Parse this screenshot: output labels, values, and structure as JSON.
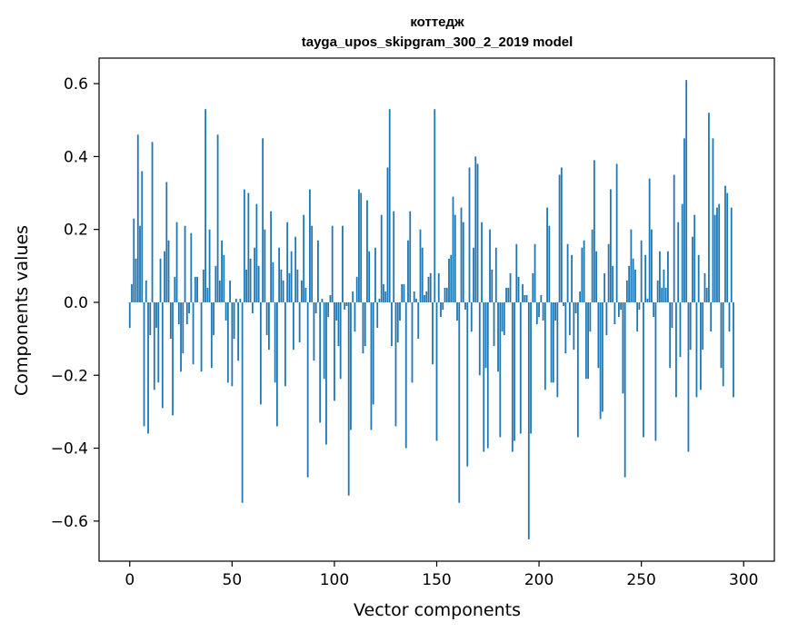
{
  "chart_data": {
    "type": "bar",
    "title": "коттедж",
    "subtitle": "tayga_upos_skipgram_300_2_2019 model",
    "xlabel": "Vector components",
    "ylabel": "Components values",
    "xlim": [
      -15,
      315
    ],
    "ylim": [
      -0.71,
      0.67
    ],
    "xticks": [
      0,
      50,
      100,
      150,
      200,
      250,
      300
    ],
    "yticks": [
      -0.6,
      -0.4,
      -0.2,
      0.0,
      0.2,
      0.4,
      0.6
    ],
    "ytick_labels": [
      "−0.6",
      "−0.4",
      "−0.2",
      "0.0",
      "0.2",
      "0.4",
      "0.6"
    ],
    "grid": false,
    "color": "#1f77b4",
    "values": [
      -0.07,
      0.05,
      0.23,
      0.12,
      0.46,
      0.21,
      0.36,
      -0.34,
      0.06,
      -0.36,
      -0.09,
      0.44,
      -0.24,
      -0.07,
      -0.22,
      0.12,
      -0.29,
      0.14,
      0.33,
      0.17,
      -0.1,
      -0.31,
      0.07,
      0.22,
      -0.06,
      -0.19,
      -0.14,
      0.21,
      -0.06,
      -0.03,
      0.19,
      -0.17,
      0.07,
      0.07,
      0.0,
      -0.19,
      0.09,
      0.53,
      0.04,
      0.2,
      -0.18,
      -0.09,
      0.1,
      0.46,
      0.06,
      0.17,
      0.13,
      -0.05,
      -0.22,
      0.06,
      -0.23,
      -0.1,
      0.01,
      -0.16,
      0.01,
      -0.55,
      0.31,
      0.09,
      0.3,
      0.12,
      -0.03,
      0.15,
      0.27,
      0.1,
      -0.28,
      0.45,
      0.2,
      -0.09,
      -0.13,
      0.25,
      0.11,
      -0.22,
      -0.34,
      0.15,
      0.09,
      0.06,
      -0.23,
      0.22,
      0.08,
      0.14,
      -0.13,
      0.18,
      0.09,
      -0.11,
      0.06,
      0.24,
      0.04,
      -0.48,
      0.31,
      0.21,
      -0.16,
      -0.03,
      0.17,
      -0.33,
      0.01,
      -0.21,
      -0.39,
      -0.04,
      0.02,
      0.21,
      -0.27,
      -0.05,
      -0.12,
      -0.21,
      0.21,
      -0.02,
      -0.01,
      -0.53,
      -0.35,
      0.03,
      -0.08,
      0.07,
      0.31,
      0.3,
      -0.14,
      -0.12,
      0.28,
      0.14,
      -0.35,
      -0.28,
      0.15,
      -0.07,
      0.01,
      0.24,
      0.05,
      0.03,
      0.37,
      0.53,
      -0.12,
      0.25,
      -0.34,
      -0.11,
      -0.05,
      0.05,
      0.05,
      -0.4,
      0.17,
      0.25,
      -0.22,
      0.03,
      0.01,
      -0.1,
      0.2,
      0.15,
      0.02,
      0.03,
      0.07,
      0.08,
      -0.17,
      0.53,
      -0.38,
      0.08,
      -0.04,
      -0.02,
      0.04,
      0.04,
      0.12,
      0.13,
      0.29,
      0.24,
      -0.05,
      -0.55,
      0.26,
      0.22,
      -0.02,
      -0.45,
      0.37,
      -0.08,
      0.15,
      0.4,
      0.38,
      -0.2,
      0.22,
      -0.41,
      -0.18,
      -0.4,
      0.2,
      0.09,
      -0.12,
      0.15,
      -0.19,
      -0.37,
      -0.08,
      -0.09,
      0.04,
      0.04,
      0.08,
      -0.41,
      -0.38,
      0.16,
      0.07,
      -0.36,
      0.05,
      0.02,
      0.02,
      -0.65,
      -0.36,
      0.08,
      0.16,
      -0.06,
      -0.04,
      0.02,
      -0.05,
      -0.24,
      0.26,
      0.21,
      -0.22,
      -0.22,
      -0.05,
      -0.26,
      0.35,
      0.37,
      -0.01,
      -0.14,
      0.16,
      -0.09,
      0.13,
      -0.13,
      -0.03,
      -0.37,
      0.03,
      0.15,
      0.17,
      -0.21,
      -0.21,
      -0.08,
      0.2,
      0.39,
      0.14,
      -0.18,
      -0.32,
      -0.3,
      0.08,
      -0.09,
      0.16,
      0.31,
      0.1,
      -0.06,
      0.38,
      -0.04,
      -0.02,
      -0.25,
      -0.48,
      0.06,
      0.1,
      0.2,
      0.12,
      0.09,
      -0.08,
      -0.02,
      0.17,
      -0.37,
      0.13,
      0.01,
      0.34,
      0.2,
      -0.04,
      -0.38,
      0.06,
      0.14,
      0.04,
      0.09,
      0.04,
      0.14,
      -0.18,
      -0.07,
      0.35,
      -0.26,
      0.22,
      -0.15,
      0.27,
      0.45,
      0.61,
      -0.41,
      -0.13,
      0.18,
      0.24,
      -0.26,
      0.13,
      -0.24,
      -0.13,
      0.08,
      0.04,
      0.52,
      -0.08,
      0.45,
      0.24,
      0.26,
      0.27,
      -0.18,
      -0.23,
      0.32,
      0.3,
      -0.08,
      0.26,
      -0.26
    ]
  }
}
